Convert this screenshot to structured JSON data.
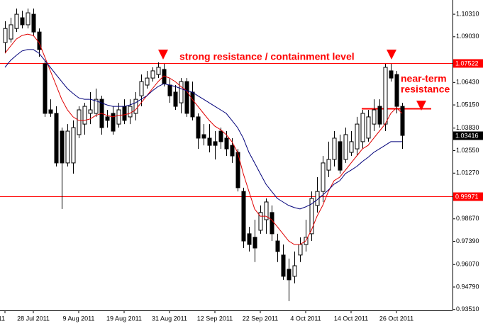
{
  "chart_data": {
    "type": "candlestick",
    "categories": [
      "11",
      null,
      null,
      null,
      null,
      "28 Jul 2011",
      null,
      null,
      null,
      null,
      null,
      null,
      null,
      "9 Aug 2011",
      null,
      null,
      null,
      null,
      null,
      null,
      null,
      "19 Aug 2011",
      null,
      null,
      null,
      null,
      null,
      null,
      null,
      "31 Aug 2011",
      null,
      null,
      null,
      null,
      null,
      null,
      null,
      "12 Sep 2011",
      null,
      null,
      null,
      null,
      null,
      null,
      null,
      "22 Sep 2011",
      null,
      null,
      null,
      null,
      null,
      null,
      null,
      "4 Oct 2011",
      null,
      null,
      null,
      null,
      null,
      null,
      null,
      "14 Oct 2011",
      null,
      null,
      null,
      null,
      null,
      null,
      null,
      "26 Oct 2011",
      null
    ],
    "open": [
      1.087,
      1.089,
      1.095,
      1.1011,
      1.0971,
      1.1031,
      1.093,
      1.0749,
      1.0487,
      1.0467,
      1.0366,
      1.0185,
      1.0185,
      1.0346,
      1.0406,
      1.0467,
      1.0467,
      1.0547,
      1.0447,
      1.0467,
      1.0406,
      1.0507,
      1.0447,
      1.0467,
      1.0567,
      1.0628,
      1.0668,
      1.0688,
      1.0717,
      1.0628,
      1.0588,
      1.0527,
      1.0648,
      1.0588,
      1.0447,
      1.0346,
      1.0326,
      1.0306,
      1.0366,
      1.0326,
      1.0285,
      1.0245,
      1.0023,
      0.9782,
      0.9762,
      0.9802,
      0.9862,
      0.9903,
      0.9741,
      0.9661,
      0.958,
      0.954,
      0.9661,
      0.9721,
      0.9782,
      0.9943,
      1.0023,
      1.0144,
      1.0205,
      1.0306,
      1.0205,
      1.0245,
      1.0265,
      1.0306,
      1.0326,
      1.0406,
      1.0507,
      1.0406,
      1.0709,
      1.0688,
      1.0507
    ],
    "high": [
      1.0991,
      1.1011,
      1.1063,
      1.1051,
      1.1063,
      1.1063,
      1.095,
      1.0769,
      1.0547,
      1.0507,
      1.0386,
      1.0406,
      1.0427,
      1.0507,
      1.0527,
      1.0588,
      1.0608,
      1.0567,
      1.0487,
      1.0507,
      1.0527,
      1.0547,
      1.0547,
      1.0588,
      1.0688,
      1.0709,
      1.0729,
      1.0757,
      1.0749,
      1.0668,
      1.0628,
      1.0668,
      1.0668,
      1.0648,
      1.0467,
      1.0406,
      1.0406,
      1.0366,
      1.0386,
      1.0366,
      1.0326,
      1.0265,
      1.0044,
      0.9822,
      0.9862,
      0.9943,
      0.9983,
      0.9943,
      0.9782,
      0.9721,
      0.9641,
      0.9681,
      0.9762,
      0.9862,
      1.0023,
      1.0104,
      1.0225,
      1.0306,
      1.0366,
      1.0346,
      1.0386,
      1.0366,
      1.0447,
      1.0487,
      1.0487,
      1.0547,
      1.0547,
      1.0749,
      1.0749,
      1.0709,
      1.0527
    ],
    "low": [
      1.0809,
      1.087,
      1.093,
      1.095,
      1.095,
      1.091,
      1.0789,
      1.0447,
      1.0447,
      1.0165,
      0.9923,
      1.0165,
      1.0124,
      1.0326,
      1.0346,
      1.0406,
      1.0447,
      1.0346,
      1.0386,
      1.0346,
      1.0386,
      1.0406,
      1.0406,
      1.0427,
      1.0507,
      1.0608,
      1.0648,
      1.0668,
      1.062,
      1.0527,
      1.0487,
      1.0467,
      1.0447,
      1.0427,
      1.0265,
      1.0285,
      1.0245,
      1.0205,
      1.0265,
      1.0225,
      1.0185,
      1.0023,
      0.9701,
      0.9681,
      0.9621,
      0.9782,
      0.9782,
      0.9741,
      0.9621,
      0.952,
      0.9399,
      0.95,
      0.9621,
      0.9681,
      0.9741,
      0.9903,
      0.9963,
      1.0104,
      1.0165,
      1.0124,
      1.0185,
      1.0225,
      1.0225,
      1.0265,
      1.0306,
      1.0366,
      1.0386,
      1.0366,
      1.0648,
      1.0467,
      1.0265
    ],
    "close": [
      1.095,
      1.0971,
      1.1031,
      1.0971,
      1.1039,
      1.093,
      1.083,
      1.0467,
      1.0467,
      1.0185,
      1.0185,
      1.0366,
      1.0386,
      1.0487,
      1.0507,
      1.0487,
      1.0547,
      1.0386,
      1.0427,
      1.0366,
      1.0487,
      1.0427,
      1.0507,
      1.0547,
      1.0648,
      1.0668,
      1.0709,
      1.0729,
      1.0636,
      1.0567,
      1.0507,
      1.0648,
      1.0467,
      1.0447,
      1.0326,
      1.0326,
      1.0285,
      1.0285,
      1.0306,
      1.0265,
      1.0225,
      1.0044,
      0.9741,
      0.9721,
      0.9701,
      0.9903,
      0.9963,
      0.9782,
      0.9681,
      0.954,
      0.952,
      0.96,
      0.9721,
      0.9762,
      0.9983,
      1.0023,
      1.0185,
      1.0205,
      1.0326,
      1.0144,
      1.0346,
      1.0306,
      1.0406,
      1.0467,
      1.0447,
      1.0487,
      1.0406,
      1.0729,
      1.0668,
      1.0507,
      1.03416
    ],
    "lines": [
      {
        "color": "#e00000",
        "values": [
          1.0809,
          1.085,
          1.089,
          1.091,
          1.0918,
          1.091,
          1.087,
          1.0789,
          1.0709,
          1.0628,
          1.0547,
          1.0487,
          1.0447,
          1.0427,
          1.0427,
          1.0435,
          1.0455,
          1.0467,
          1.0455,
          1.0447,
          1.0455,
          1.0459,
          1.0467,
          1.0487,
          1.0527,
          1.0567,
          1.0608,
          1.0648,
          1.068,
          1.0668,
          1.0648,
          1.062,
          1.0596,
          1.0547,
          1.0507,
          1.0467,
          1.0427,
          1.0394,
          1.0374,
          1.0346,
          1.0306,
          1.0245,
          1.0124,
          1.0023,
          0.9923,
          0.9882,
          0.9882,
          0.9862,
          0.9822,
          0.9782,
          0.9741,
          0.9721,
          0.9721,
          0.9741,
          0.9802,
          0.9882,
          0.9943,
          1.0023,
          1.0084,
          1.0104,
          1.0144,
          1.0185,
          1.0225,
          1.0265,
          1.0285,
          1.0326,
          1.0366,
          1.0406,
          1.0467,
          1.0499,
          1.0467
        ]
      },
      {
        "color": "#00007a",
        "values": [
          1.0729,
          1.0769,
          1.0797,
          1.0822,
          1.083,
          1.083,
          1.0809,
          1.0769,
          1.0729,
          1.0688,
          1.0648,
          1.0608,
          1.058,
          1.0555,
          1.0547,
          1.0547,
          1.0539,
          1.0527,
          1.0515,
          1.0507,
          1.0507,
          1.0507,
          1.0515,
          1.0527,
          1.0547,
          1.0567,
          1.0596,
          1.062,
          1.0636,
          1.0628,
          1.062,
          1.0608,
          1.0596,
          1.0588,
          1.0567,
          1.0547,
          1.0527,
          1.0507,
          1.0487,
          1.0467,
          1.0427,
          1.0386,
          1.0326,
          1.0245,
          1.0185,
          1.0124,
          1.0064,
          1.0023,
          0.9983,
          0.9963,
          0.9943,
          0.9931,
          0.9923,
          0.9935,
          0.9951,
          0.9975,
          1.0003,
          1.0031,
          1.0064,
          1.0084,
          1.0124,
          1.0144,
          1.0165,
          1.0193,
          1.0217,
          1.0245,
          1.0265,
          1.0285,
          1.0306,
          1.0306,
          1.0306
        ]
      }
    ],
    "ylim": [
      0.9346,
      1.1112
    ],
    "yticks": [
      {
        "value": 1.1031,
        "label": "1.10310"
      },
      {
        "value": 1.0903,
        "label": "1.09030"
      },
      {
        "value": 1.0643,
        "label": "1.06430"
      },
      {
        "value": 1.0515,
        "label": "1.05150"
      },
      {
        "value": 1.0383,
        "label": "1.03830"
      },
      {
        "value": 1.0255,
        "label": "1.02550"
      },
      {
        "value": 1.0127,
        "label": "1.01270"
      },
      {
        "value": 0.9867,
        "label": "0.98670"
      },
      {
        "value": 0.9739,
        "label": "0.97390"
      },
      {
        "value": 0.9607,
        "label": "0.96070"
      },
      {
        "value": 0.9479,
        "label": "0.94790"
      },
      {
        "value": 0.9351,
        "label": "0.93510"
      }
    ],
    "levels": [
      {
        "value": 1.07522,
        "color": "#ff0000"
      },
      {
        "value": 0.99971,
        "color": "#ff0000"
      }
    ],
    "price_label": 1.03416,
    "near_term_level": 1.0495,
    "annotations": {
      "main": "strong resistance / containment level",
      "near": [
        "near-term",
        "resistance"
      ]
    }
  }
}
